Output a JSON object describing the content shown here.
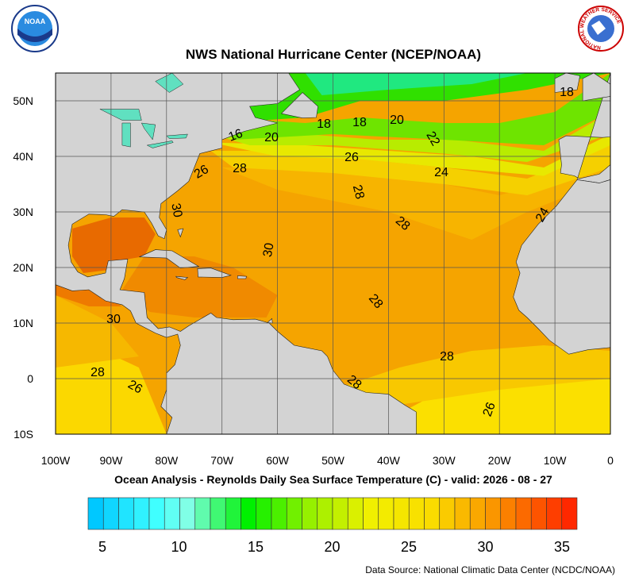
{
  "header": {
    "title": "NWS National Hurricane Center (NCEP/NOAA)",
    "logo_left": "NOAA",
    "logo_right": "NATIONAL WEATHER SERVICE"
  },
  "map": {
    "lon_labels": [
      "100W",
      "90W",
      "80W",
      "70W",
      "60W",
      "50W",
      "40W",
      "30W",
      "20W",
      "10W",
      "0"
    ],
    "lat_labels": [
      "50N",
      "40N",
      "30N",
      "20N",
      "10N",
      "0",
      "10S"
    ],
    "contour_labels": [
      "18",
      "18",
      "18",
      "20",
      "22",
      "16",
      "20",
      "26",
      "28",
      "26",
      "24",
      "28",
      "30",
      "28",
      "24",
      "30",
      "28",
      "30",
      "28",
      "28",
      "26",
      "28",
      "26"
    ]
  },
  "caption": "Ocean Analysis - Reynolds Daily Sea Surface Temperature (C) - valid: 2026 - 08 - 27",
  "colorbar": {
    "ticks": [
      5,
      10,
      15,
      20,
      25,
      30,
      35
    ]
  },
  "source": "Data Source: National Climatic Data Center (NCDC/NOAA)"
}
